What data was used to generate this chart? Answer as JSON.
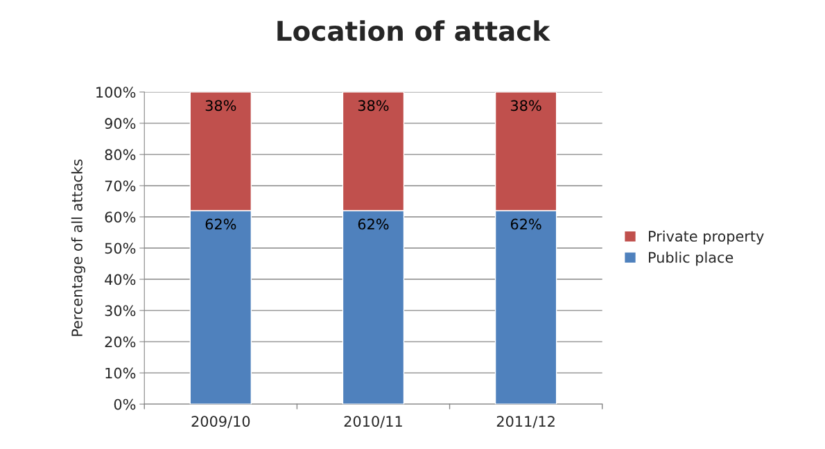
{
  "chart_data": {
    "type": "bar",
    "title": "Location of attack",
    "ylabel": "Percentage of all attacks",
    "categories": [
      "2009/10",
      "2010/11",
      "2011/12"
    ],
    "series": [
      {
        "name": "Public place",
        "color": "#4f81bd",
        "values": [
          62,
          62,
          62
        ],
        "value_labels": [
          "62%",
          "62%",
          "62%"
        ]
      },
      {
        "name": "Private property",
        "color": "#c0504d",
        "values": [
          38,
          38,
          38
        ],
        "value_labels": [
          "38%",
          "38%",
          "38%"
        ]
      }
    ],
    "stacked": true,
    "ylim": [
      0,
      100
    ],
    "yticks": [
      {
        "value": 0,
        "label": "0%"
      },
      {
        "value": 10,
        "label": "10%"
      },
      {
        "value": 20,
        "label": "20%"
      },
      {
        "value": 30,
        "label": "30%"
      },
      {
        "value": 40,
        "label": "40%"
      },
      {
        "value": 50,
        "label": "50%"
      },
      {
        "value": 60,
        "label": "60%"
      },
      {
        "value": 70,
        "label": "70%"
      },
      {
        "value": 80,
        "label": "80%"
      },
      {
        "value": 90,
        "label": "90%"
      },
      {
        "value": 100,
        "label": "100%"
      }
    ],
    "grid": "y",
    "legend": "right"
  }
}
